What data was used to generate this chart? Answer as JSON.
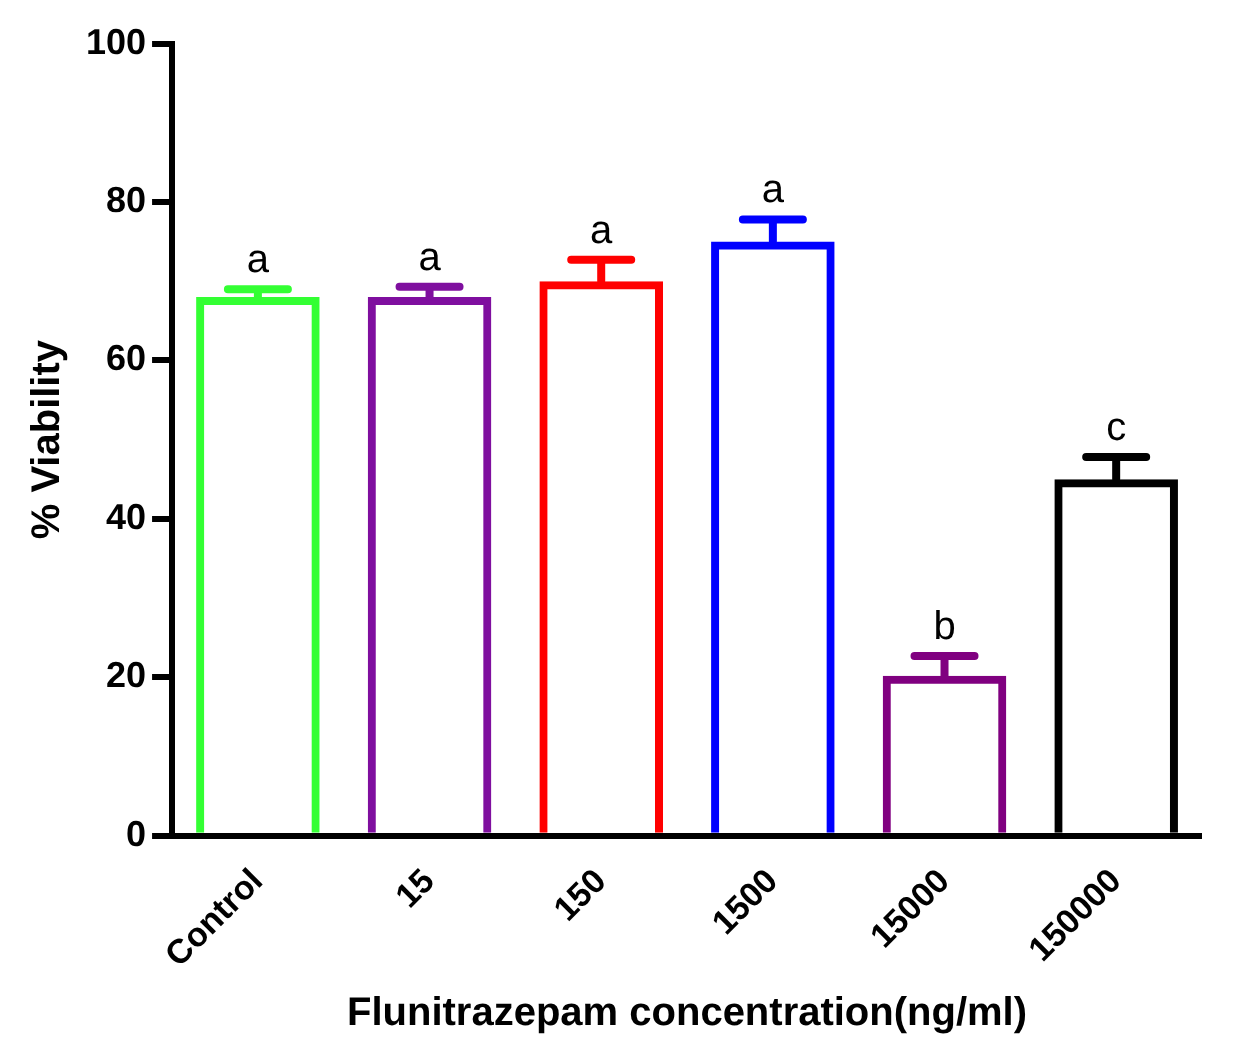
{
  "chart_data": {
    "type": "bar",
    "xlabel": "Flunitrazepam concentration(ng/ml)",
    "ylabel": "% Viability",
    "categories": [
      "Control",
      "15",
      "150",
      "1500",
      "15000",
      "150000"
    ],
    "values": [
      68,
      68,
      70,
      75,
      20.2,
      45
    ],
    "errors": [
      [
        68,
        69
      ],
      [
        68,
        69.3
      ],
      [
        70,
        72.7
      ],
      [
        75,
        77.8
      ],
      [
        20.2,
        22.7
      ],
      [
        45,
        47.8
      ]
    ],
    "colors": [
      "#33ff33",
      "#7f0f9f",
      "#ff0000",
      "#0000ff",
      "#800080",
      "#000000"
    ],
    "ylim": [
      0,
      100
    ],
    "yticks": [
      0,
      20,
      40,
      60,
      80,
      100
    ],
    "grid": false,
    "legend": false,
    "annotations": [
      {
        "text": "a",
        "x": "Control",
        "y": 69
      },
      {
        "text": "a",
        "x": "15",
        "y": 69.3
      },
      {
        "text": "a",
        "x": "150",
        "y": 72.7
      },
      {
        "text": "a",
        "x": "1500",
        "y": 77.8
      },
      {
        "text": "b",
        "x": "15000",
        "y": 22.7
      },
      {
        "text": "c",
        "x": "150000",
        "y": 47.8
      }
    ]
  }
}
